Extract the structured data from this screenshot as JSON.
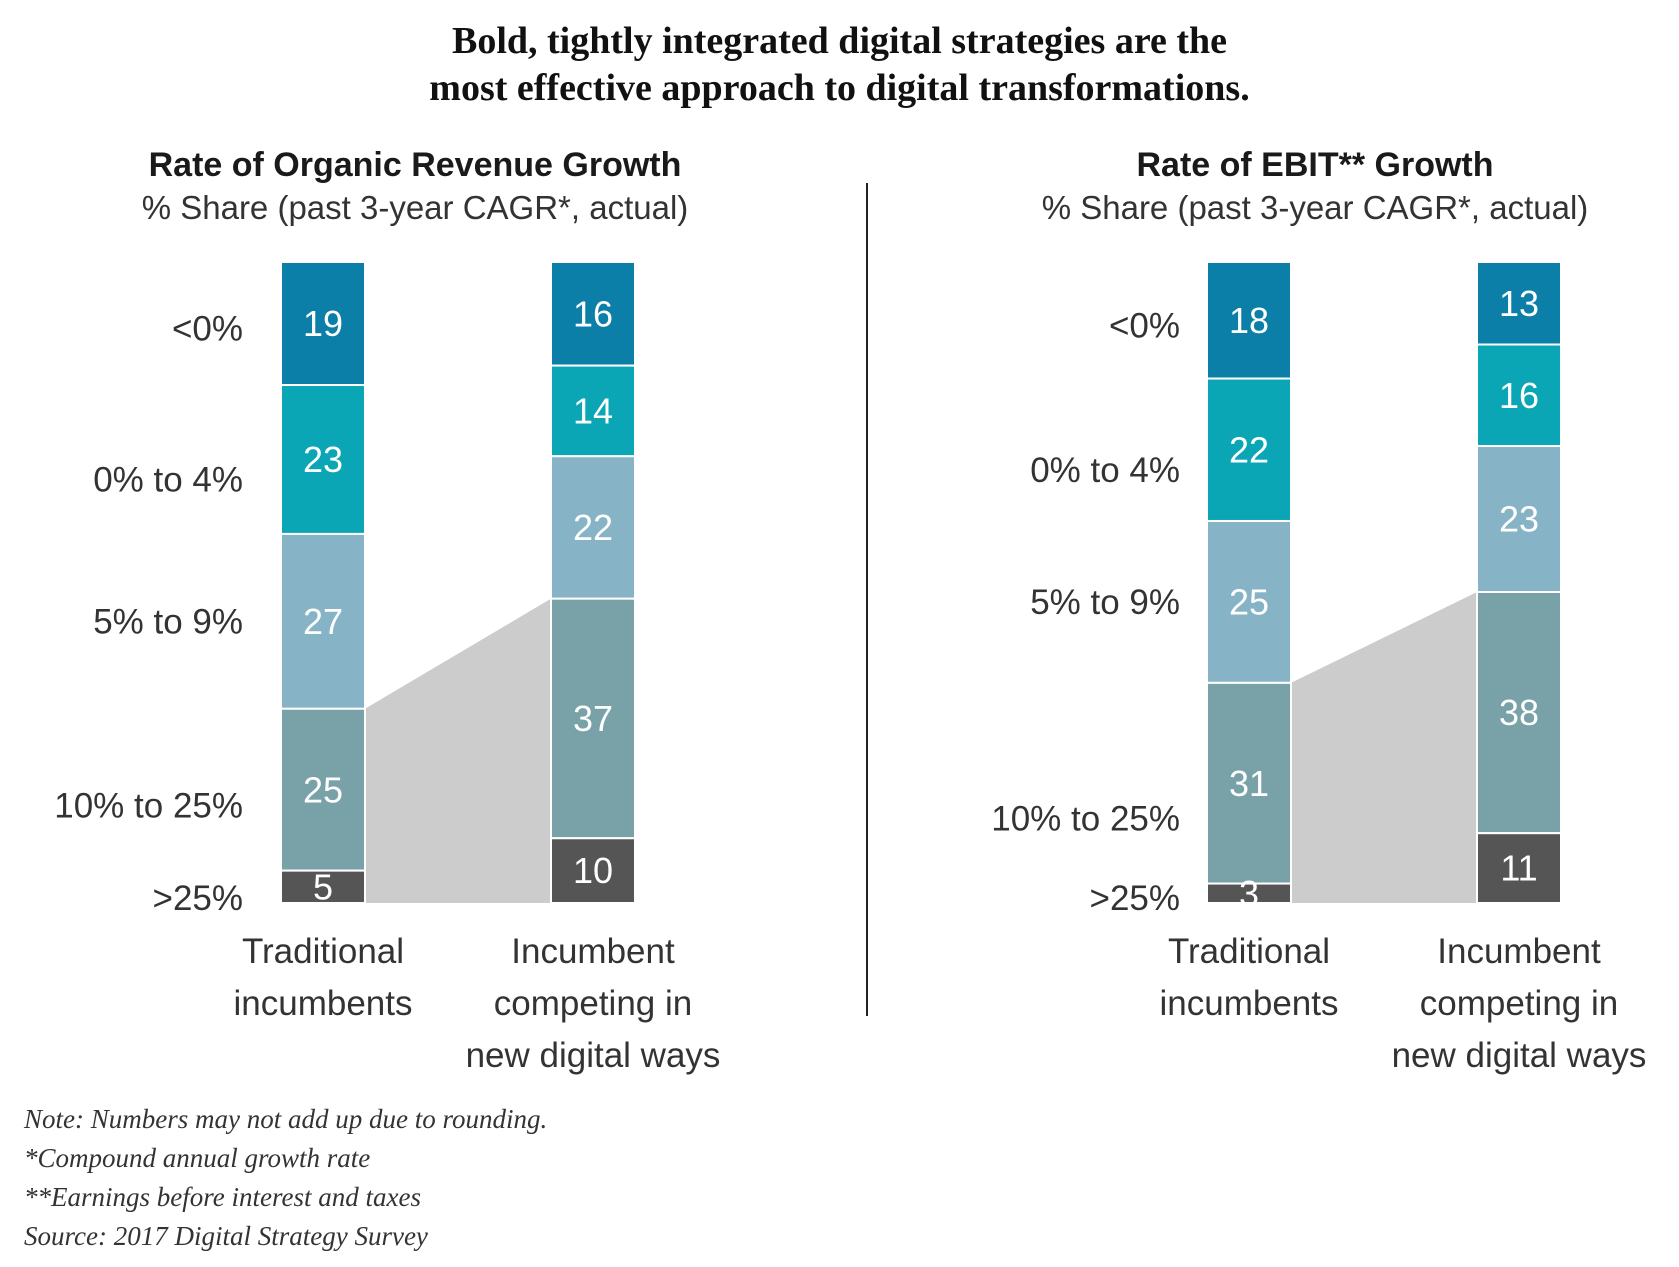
{
  "title": [
    "Bold, tightly integrated digital strategies are the",
    "most effective approach to digital transformations."
  ],
  "colors": {
    "<0%": "#0c7fa8",
    "0% to 4%": "#0aa6b6",
    "5% to 9%": "#86b3c6",
    "10% to 25%": "#78a1a8",
    ">25%": "#555555",
    "connector": "#cccccc"
  },
  "chart_data": [
    {
      "type": "bar",
      "stacked": true,
      "title": "Rate of Organic Revenue Growth",
      "subtitle": "% Share (past 3-year CAGR*, actual)",
      "categories": [
        [
          "Traditional",
          "incumbents"
        ],
        [
          "Incumbent",
          "competing in",
          "new digital ways"
        ]
      ],
      "series": [
        {
          "name": "<0%",
          "values": [
            19,
            16
          ]
        },
        {
          "name": "0% to 4%",
          "values": [
            23,
            14
          ]
        },
        {
          "name": "5% to 9%",
          "values": [
            27,
            22
          ]
        },
        {
          "name": "10% to 25%",
          "values": [
            25,
            37
          ]
        },
        {
          "name": ">25%",
          "values": [
            5,
            10
          ]
        }
      ],
      "ylim": [
        0,
        100
      ]
    },
    {
      "type": "bar",
      "stacked": true,
      "title": "Rate of EBIT** Growth",
      "subtitle": "% Share (past 3-year CAGR*, actual)",
      "categories": [
        [
          "Traditional",
          "incumbents"
        ],
        [
          "Incumbent",
          "competing in",
          "new digital ways"
        ]
      ],
      "series": [
        {
          "name": "<0%",
          "values": [
            18,
            13
          ]
        },
        {
          "name": "0% to 4%",
          "values": [
            22,
            16
          ]
        },
        {
          "name": "5% to 9%",
          "values": [
            25,
            23
          ]
        },
        {
          "name": "10% to 25%",
          "values": [
            31,
            38
          ]
        },
        {
          "name": ">25%",
          "values": [
            3,
            11
          ]
        }
      ],
      "ylim": [
        0,
        100
      ]
    }
  ],
  "notes": [
    "Note: Numbers may not add up due to rounding.",
    "*Compound annual growth rate",
    "**Earnings before interest and taxes",
    "Source: 2017 Digital Strategy Survey"
  ]
}
